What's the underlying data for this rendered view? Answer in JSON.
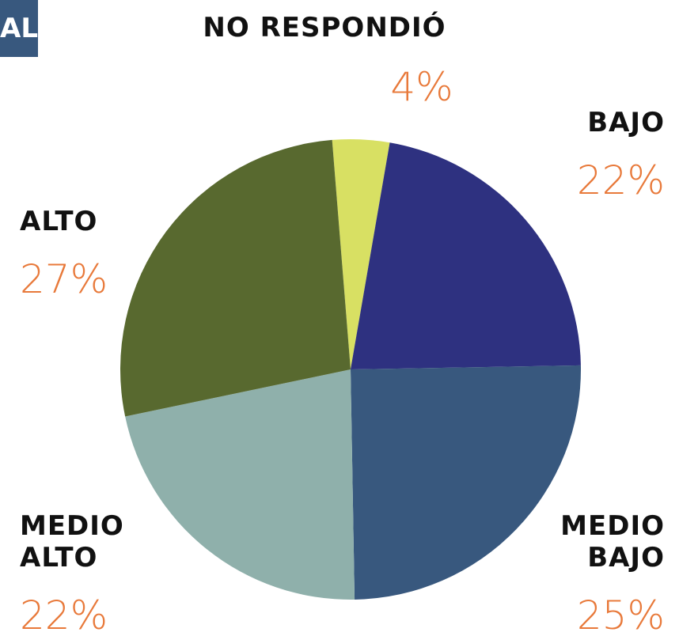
{
  "badge": "AL",
  "chart_data": {
    "type": "pie",
    "categories": [
      "NO RESPONDIÓ",
      "BAJO",
      "MEDIO BAJO",
      "MEDIO ALTO",
      "ALTO"
    ],
    "values": [
      4,
      22,
      25,
      22,
      27
    ],
    "value_labels": [
      "4%",
      "22%",
      "25%",
      "22%",
      "27%"
    ],
    "colors": [
      "#d8e063",
      "#2e3180",
      "#38587e",
      "#8fb0ab",
      "#58692f"
    ]
  }
}
